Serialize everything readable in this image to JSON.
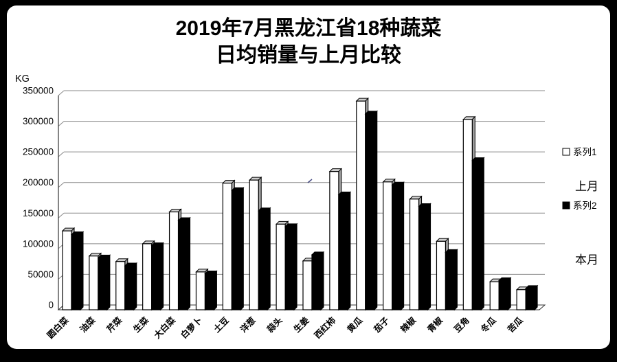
{
  "title": {
    "line1": "2019年7月黑龙江省18种蔬菜",
    "line2": "日均销量与上月比较"
  },
  "y_axis": {
    "unit": "KG",
    "tick_labels": [
      "350000",
      "300000",
      "250000",
      "200000",
      "150000",
      "100000",
      "50000",
      "0"
    ]
  },
  "legend": {
    "series1_label": "系列1",
    "series1_note": "上月",
    "series2_label": "系列2",
    "series2_note": "本月"
  },
  "chart_data": {
    "type": "bar",
    "title": "2019年7月黑龙江省18种蔬菜日均销量与上月比较",
    "ylabel": "KG",
    "ylim": [
      0,
      350000
    ],
    "ytick_step": 50000,
    "grid": true,
    "legend_position": "right",
    "style": {
      "series1_fill": "#ffffff",
      "series1_cap": "#cfcfcf",
      "series1_side": "#9e9e9e",
      "series2_fill": "#000000",
      "series2_cap": "#000000",
      "series2_side": "#000000",
      "gridline_color": "#8a8a8a",
      "axis_color": "#333333",
      "outline_color": "#000000"
    },
    "categories": [
      "圆白菜",
      "油菜",
      "芹菜",
      "生菜",
      "大白菜",
      "白萝卜",
      "土豆",
      "洋葱",
      "蒜头",
      "生姜",
      "西红柿",
      "黄瓜",
      "茄子",
      "辣椒",
      "青椒",
      "豆角",
      "冬瓜",
      "苦瓜"
    ],
    "series": [
      {
        "name": "系列1",
        "meaning": "上月",
        "values": [
          121000,
          80000,
          71000,
          100000,
          152000,
          54000,
          199000,
          204000,
          132000,
          72000,
          218000,
          333000,
          201000,
          173000,
          104000,
          303000,
          38000,
          25000
        ]
      },
      {
        "name": "系列2",
        "meaning": "本月",
        "values": [
          115000,
          77000,
          64000,
          97000,
          138000,
          51000,
          187000,
          154000,
          128000,
          82000,
          180000,
          312000,
          196000,
          161000,
          86000,
          236000,
          40000,
          27000
        ]
      }
    ]
  }
}
